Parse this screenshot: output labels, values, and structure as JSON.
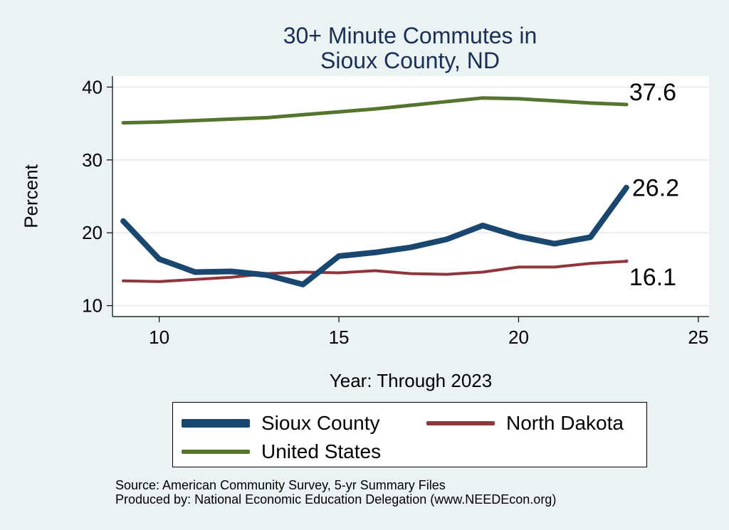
{
  "chart_data": {
    "type": "line",
    "title_lines": [
      "30+ Minute Commutes in",
      "Sioux County, ND"
    ],
    "xlabel": "Year: Through 2023",
    "ylabel": "Percent",
    "xlim": [
      8.7,
      25.3
    ],
    "ylim": [
      8.5,
      41.5
    ],
    "xticks": [
      10,
      15,
      20,
      25
    ],
    "yticks": [
      10,
      20,
      30,
      40
    ],
    "grid": true,
    "legend_position": "bottom",
    "series": [
      {
        "name": "Sioux County",
        "color": "#1a476f",
        "x": [
          9,
          10,
          11,
          12,
          13,
          14,
          15,
          16,
          17,
          18,
          19,
          20,
          21,
          22,
          23
        ],
        "y": [
          21.6,
          16.4,
          14.6,
          14.7,
          14.2,
          12.9,
          16.8,
          17.3,
          18.0,
          19.1,
          21.0,
          19.5,
          18.5,
          19.4,
          26.2
        ],
        "end_label": "26.2"
      },
      {
        "name": "North Dakota",
        "color": "#90353b",
        "x": [
          9,
          10,
          11,
          12,
          13,
          14,
          15,
          16,
          17,
          18,
          19,
          20,
          21,
          22,
          23
        ],
        "y": [
          13.4,
          13.3,
          13.6,
          13.9,
          14.4,
          14.6,
          14.5,
          14.8,
          14.4,
          14.3,
          14.6,
          15.3,
          15.3,
          15.8,
          16.1
        ],
        "end_label": "16.1"
      },
      {
        "name": "United States",
        "color": "#55752f",
        "x": [
          9,
          10,
          11,
          12,
          13,
          14,
          15,
          16,
          17,
          18,
          19,
          20,
          21,
          22,
          23
        ],
        "y": [
          35.1,
          35.2,
          35.4,
          35.6,
          35.8,
          36.2,
          36.6,
          37.0,
          37.5,
          38.0,
          38.5,
          38.4,
          38.1,
          37.8,
          37.6
        ],
        "end_label": "37.6"
      }
    ]
  },
  "source_lines": [
    "Source: American Community Survey, 5-yr Summary Files",
    "Produced by: National Economic Education Delegation (www.NEEDEcon.org)"
  ]
}
